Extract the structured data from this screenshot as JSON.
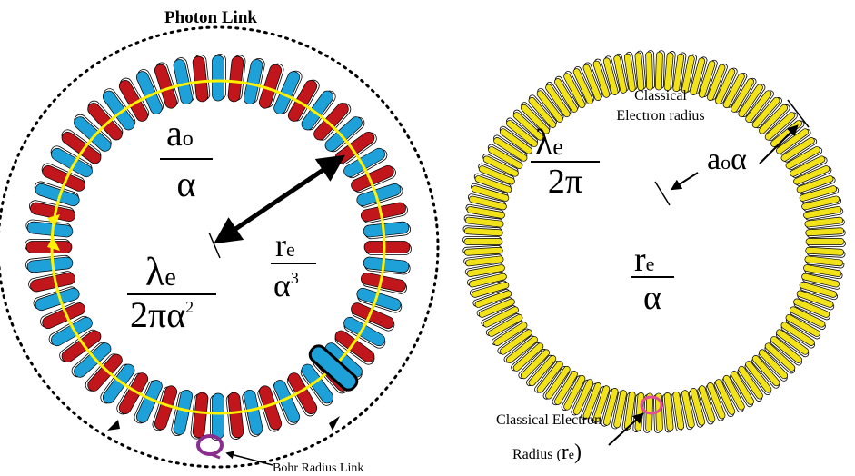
{
  "left_diagram": {
    "title": "Photon Link",
    "fraction_top": {
      "numerator_main": "a",
      "numerator_sub": "o",
      "denominator": "α"
    },
    "fraction_bottom": {
      "numerator_main": "λ",
      "numerator_sub": "e",
      "denominator_main": "2πα",
      "denominator_sup": "2"
    },
    "fraction_right": {
      "numerator_main": "r",
      "numerator_sub": "e",
      "denominator_main": "α",
      "denominator_sup": "3"
    },
    "caption": "Bohr Radius Link",
    "colors": {
      "coil_a": "#c0161c",
      "coil_b": "#1ea0d8",
      "ring_path": "#fff200",
      "loop": "#8a2d8e"
    }
  },
  "right_diagram": {
    "label_classical_line1": "Classical",
    "label_classical_line2": "Electron radius",
    "fraction_left": {
      "numerator_main": "λ",
      "numerator_sub": "e",
      "denominator": "2π"
    },
    "label_aoalpha_main": "a",
    "label_aoalpha_sub": "o",
    "label_aoalpha_tail": "α",
    "fraction_bottom": {
      "numerator_main": "r",
      "numerator_sub": "e",
      "denominator": "α"
    },
    "caption_line1": "Classical Electron",
    "caption_line2_prefix": "Radius (",
    "caption_line2_main": "r",
    "caption_line2_sub": "e",
    "caption_line2_suffix": ")",
    "colors": {
      "coil": "#f2e21a",
      "loop": "#e0509a"
    }
  }
}
